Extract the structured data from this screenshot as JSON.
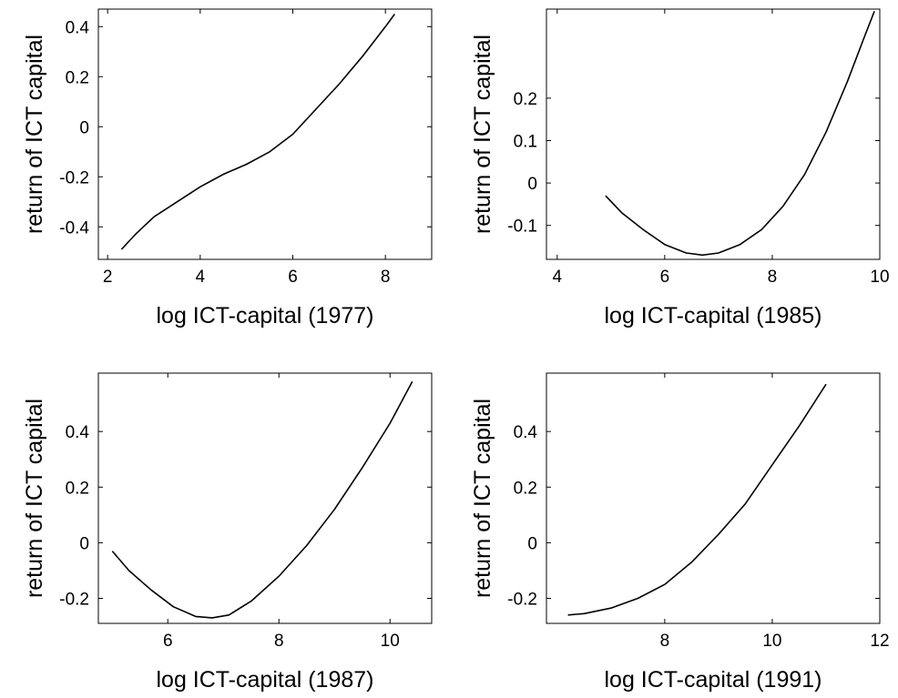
{
  "chart_data": [
    {
      "type": "line",
      "xlabel": "log ICT-capital (1977)",
      "ylabel": "return of ICT capital",
      "xlim": [
        1.8,
        9.0
      ],
      "ylim": [
        -0.53,
        0.47
      ],
      "xticks": [
        2,
        4,
        6,
        8
      ],
      "yticks": [
        -0.4,
        -0.2,
        0,
        0.2,
        0.4
      ],
      "grid": false,
      "series": [
        {
          "color": "#000000",
          "x": [
            2.3,
            2.6,
            3.0,
            3.5,
            4.0,
            4.5,
            5.0,
            5.5,
            6.0,
            6.5,
            7.0,
            7.5,
            8.0,
            8.2
          ],
          "y": [
            -0.49,
            -0.43,
            -0.36,
            -0.3,
            -0.24,
            -0.19,
            -0.15,
            -0.1,
            -0.03,
            0.07,
            0.17,
            0.28,
            0.4,
            0.45
          ]
        }
      ]
    },
    {
      "type": "line",
      "xlabel": "log ICT-capital (1985)",
      "ylabel": "return of ICT capital",
      "xlim": [
        3.8,
        10.0
      ],
      "ylim": [
        -0.18,
        0.41
      ],
      "xticks": [
        4,
        6,
        8,
        10
      ],
      "yticks": [
        -0.1,
        0,
        0.1,
        0.2
      ],
      "grid": false,
      "series": [
        {
          "color": "#000000",
          "x": [
            4.9,
            5.2,
            5.6,
            6.0,
            6.4,
            6.7,
            7.0,
            7.4,
            7.8,
            8.2,
            8.6,
            9.0,
            9.4,
            9.7,
            9.9
          ],
          "y": [
            -0.03,
            -0.07,
            -0.11,
            -0.145,
            -0.165,
            -0.17,
            -0.165,
            -0.145,
            -0.11,
            -0.055,
            0.02,
            0.12,
            0.24,
            0.34,
            0.405
          ]
        }
      ]
    },
    {
      "type": "line",
      "xlabel": "log ICT-capital (1987)",
      "ylabel": "return of ICT capital",
      "xlim": [
        4.75,
        10.75
      ],
      "ylim": [
        -0.29,
        0.61
      ],
      "xticks": [
        6,
        8,
        10
      ],
      "yticks": [
        -0.2,
        0,
        0.2,
        0.4
      ],
      "grid": false,
      "series": [
        {
          "color": "#000000",
          "x": [
            5.0,
            5.3,
            5.7,
            6.1,
            6.5,
            6.8,
            7.1,
            7.5,
            8.0,
            8.5,
            9.0,
            9.5,
            10.0,
            10.4
          ],
          "y": [
            -0.03,
            -0.1,
            -0.17,
            -0.23,
            -0.265,
            -0.27,
            -0.26,
            -0.21,
            -0.12,
            -0.01,
            0.12,
            0.27,
            0.43,
            0.58
          ]
        }
      ]
    },
    {
      "type": "line",
      "xlabel": "log ICT-capital (1991)",
      "ylabel": "return of ICT capital",
      "xlim": [
        5.8,
        12.0
      ],
      "ylim": [
        -0.29,
        0.61
      ],
      "xticks": [
        8,
        10,
        12
      ],
      "yticks": [
        -0.2,
        0,
        0.2,
        0.4
      ],
      "grid": false,
      "series": [
        {
          "color": "#000000",
          "x": [
            6.2,
            6.5,
            7.0,
            7.5,
            8.0,
            8.5,
            9.0,
            9.5,
            10.0,
            10.5,
            11.0
          ],
          "y": [
            -0.26,
            -0.255,
            -0.235,
            -0.2,
            -0.15,
            -0.07,
            0.03,
            0.14,
            0.28,
            0.42,
            0.57
          ]
        }
      ]
    }
  ]
}
